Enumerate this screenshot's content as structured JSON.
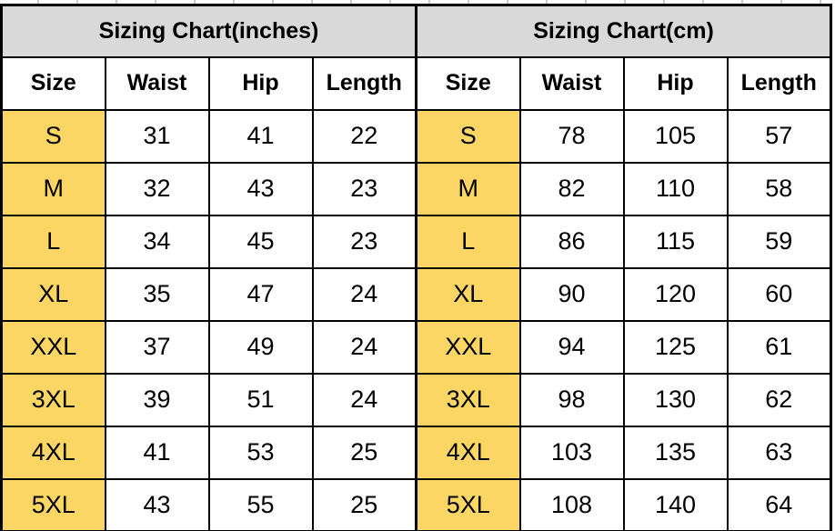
{
  "colors": {
    "title_bg": "#d9d9d9",
    "size_column_bg": "#fcd664",
    "border": "#000000",
    "cell_bg": "#ffffff",
    "text": "#000000"
  },
  "chart_data": [
    {
      "type": "table",
      "title": "Sizing Chart(inches)",
      "columns": [
        "Size",
        "Waist",
        "Hip",
        "Length"
      ],
      "rows": [
        [
          "S",
          31,
          41,
          22
        ],
        [
          "M",
          32,
          43,
          23
        ],
        [
          "L",
          34,
          45,
          23
        ],
        [
          "XL",
          35,
          47,
          24
        ],
        [
          "XXL",
          37,
          49,
          24
        ],
        [
          "3XL",
          39,
          51,
          24
        ],
        [
          "4XL",
          41,
          53,
          25
        ],
        [
          "5XL",
          43,
          55,
          25
        ]
      ]
    },
    {
      "type": "table",
      "title": "Sizing Chart(cm)",
      "columns": [
        "Size",
        "Waist",
        "Hip",
        "Length"
      ],
      "rows": [
        [
          "S",
          78,
          105,
          57
        ],
        [
          "M",
          82,
          110,
          58
        ],
        [
          "L",
          86,
          115,
          59
        ],
        [
          "XL",
          90,
          120,
          60
        ],
        [
          "XXL",
          94,
          125,
          61
        ],
        [
          "3XL",
          98,
          130,
          62
        ],
        [
          "4XL",
          103,
          135,
          63
        ],
        [
          "5XL",
          108,
          140,
          64
        ]
      ]
    }
  ]
}
